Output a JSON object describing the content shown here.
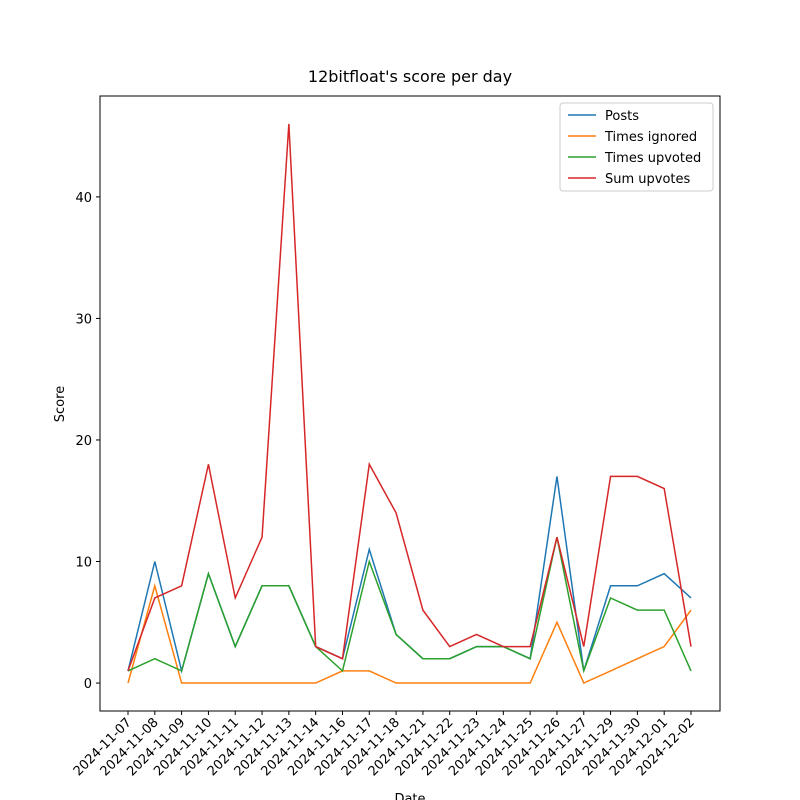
{
  "chart_data": {
    "type": "line",
    "title": "12bitfloat's score per day",
    "x_label": "Date",
    "y_label": "Score",
    "categories": [
      "2024-11-07",
      "2024-11-08",
      "2024-11-09",
      "2024-11-10",
      "2024-11-11",
      "2024-11-12",
      "2024-11-13",
      "2024-11-14",
      "2024-11-16",
      "2024-11-17",
      "2024-11-18",
      "2024-11-21",
      "2024-11-22",
      "2024-11-23",
      "2024-11-24",
      "2024-11-25",
      "2024-11-26",
      "2024-11-27",
      "2024-11-29",
      "2024-11-30",
      "2024-12-01",
      "2024-12-02"
    ],
    "series": [
      {
        "name": "Posts",
        "color": "#1f77b4",
        "values": [
          1,
          10,
          1,
          9,
          3,
          8,
          8,
          3,
          2,
          11,
          4,
          2,
          2,
          3,
          3,
          2,
          17,
          1,
          8,
          8,
          9,
          7
        ]
      },
      {
        "name": "Times ignored",
        "color": "#ff7f0e",
        "values": [
          0,
          8,
          0,
          0,
          0,
          0,
          0,
          0,
          1,
          1,
          0,
          0,
          0,
          0,
          0,
          0,
          5,
          0,
          1,
          2,
          3,
          6
        ]
      },
      {
        "name": "Times upvoted",
        "color": "#2ca02c",
        "values": [
          1,
          2,
          1,
          9,
          3,
          8,
          8,
          3,
          1,
          10,
          4,
          2,
          2,
          3,
          3,
          2,
          12,
          1,
          7,
          6,
          6,
          1
        ]
      },
      {
        "name": "Sum upvotes",
        "color": "#d62728",
        "values": [
          1,
          7,
          8,
          18,
          7,
          12,
          46,
          3,
          2,
          18,
          14,
          6,
          3,
          4,
          3,
          3,
          12,
          3,
          17,
          17,
          16,
          3
        ]
      }
    ],
    "ylim": [
      -2.3,
      48.3
    ],
    "yticks": [
      0,
      10,
      20,
      30,
      40
    ],
    "grid": false,
    "legend_position": "upper right"
  }
}
